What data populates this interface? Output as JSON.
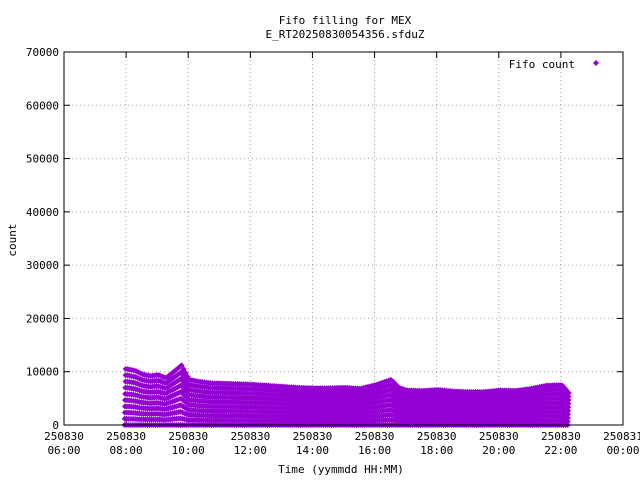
{
  "chart_data": {
    "type": "scatter",
    "title": "Fifo filling for MEX",
    "subtitle": "E_RT20250830054356.sfduZ",
    "xlabel": "Time (yymmdd HH:MM)",
    "ylabel": "count",
    "ylim": [
      0,
      70000
    ],
    "xlim": [
      "2025-08-30 06:00",
      "2025-08-31 00:00"
    ],
    "grid": true,
    "legend_position": "top-right",
    "y_ticks": [
      "0",
      "10000",
      "20000",
      "30000",
      "40000",
      "50000",
      "60000",
      "70000"
    ],
    "x_ticks": [
      {
        "date": "250830",
        "time": "06:00"
      },
      {
        "date": "250830",
        "time": "08:00"
      },
      {
        "date": "250830",
        "time": "10:00"
      },
      {
        "date": "250830",
        "time": "12:00"
      },
      {
        "date": "250830",
        "time": "14:00"
      },
      {
        "date": "250830",
        "time": "16:00"
      },
      {
        "date": "250830",
        "time": "18:00"
      },
      {
        "date": "250830",
        "time": "20:00"
      },
      {
        "date": "250830",
        "time": "22:00"
      },
      {
        "date": "250831",
        "time": "00:00"
      }
    ],
    "series": [
      {
        "name": "Fifo count",
        "color": "#9400d3",
        "marker": "diamond",
        "envelope_note": "sawtooth fill cycles from 0 up to the peak value; peak values listed per time",
        "peaks": {
          "x": [
            "08:00",
            "08:15",
            "08:30",
            "08:45",
            "09:00",
            "09:15",
            "09:30",
            "09:45",
            "10:00",
            "10:15",
            "10:30",
            "10:45",
            "11:00",
            "11:30",
            "12:00",
            "12:30",
            "13:00",
            "13:30",
            "14:00",
            "14:30",
            "15:00",
            "15:30",
            "16:00",
            "16:15",
            "16:30",
            "16:45",
            "17:00",
            "17:30",
            "18:00",
            "18:30",
            "19:00",
            "19:30",
            "20:00",
            "20:30",
            "21:00",
            "21:30",
            "22:00",
            "22:15"
          ],
          "y": [
            10500,
            10200,
            9500,
            9200,
            9400,
            8800,
            10000,
            11200,
            8500,
            8200,
            8000,
            7800,
            7800,
            7700,
            7600,
            7400,
            7200,
            7000,
            6900,
            6900,
            7000,
            6800,
            7500,
            8000,
            8500,
            7000,
            6500,
            6400,
            6600,
            6300,
            6200,
            6200,
            6500,
            6400,
            6800,
            7400,
            7500,
            5800
          ]
        }
      }
    ]
  }
}
